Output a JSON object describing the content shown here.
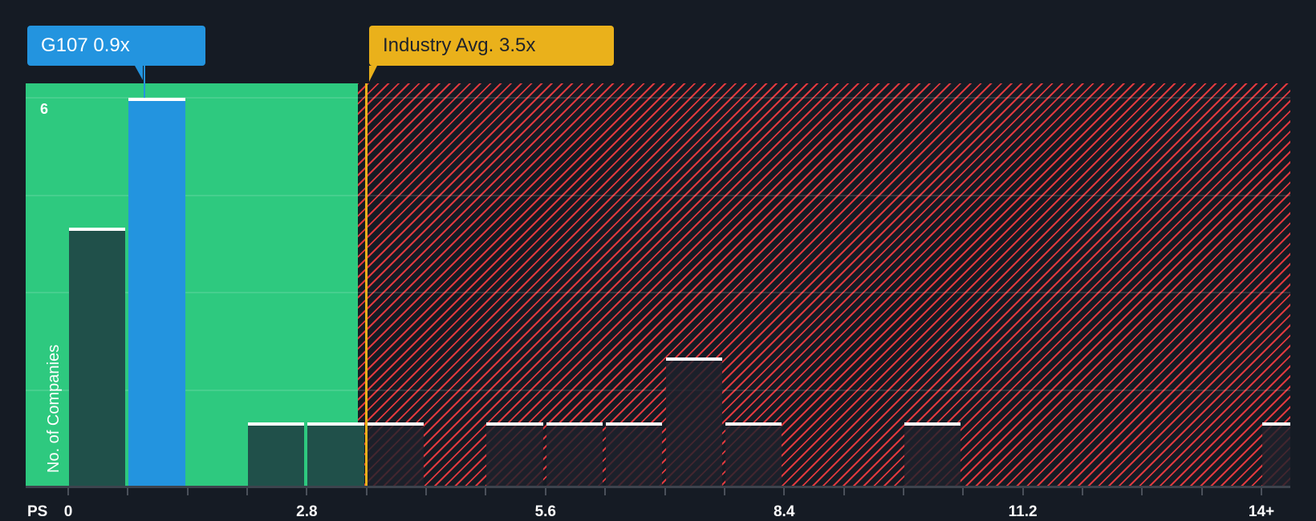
{
  "callouts": {
    "company": {
      "label": "G107 0.9x",
      "color": "#2394df"
    },
    "industry": {
      "label": "Industry Avg. 3.5x",
      "color": "#eab11b"
    }
  },
  "axes": {
    "x_name": "PS",
    "y_name": "No. of Companies",
    "y_tick_label": "6",
    "x_tick_labels": [
      "0",
      "2.8",
      "5.6",
      "8.4",
      "11.2",
      "14+"
    ]
  },
  "colors": {
    "background": "#151b24",
    "green_zone": "#2ec97f",
    "red_hatch": "#e0393e",
    "highlight_bar": "#2394df",
    "average_line": "#eab11b"
  },
  "chart_data": {
    "type": "bar",
    "title": "",
    "xlabel": "PS",
    "ylabel": "No. of Companies",
    "x_ticks": [
      0,
      2.8,
      5.6,
      8.4,
      11.2,
      "14+"
    ],
    "bin_width": 0.7,
    "categories": [
      "0-0.7",
      "0.7-1.4",
      "1.4-2.1",
      "2.1-2.8",
      "2.8-3.5",
      "3.5-4.2",
      "4.2-4.9",
      "4.9-5.6",
      "5.6-6.3",
      "6.3-7.0",
      "7.0-7.7",
      "7.7-8.4",
      "8.4-9.1",
      "9.1-9.8",
      "9.8-10.5",
      "10.5-11.2",
      "11.2-11.9",
      "11.9-12.6",
      "12.6-13.3",
      "13.3-14",
      "14+"
    ],
    "values": [
      4,
      6,
      0,
      1,
      1,
      1,
      0,
      1,
      1,
      1,
      2,
      1,
      0,
      0,
      1,
      0,
      0,
      0,
      0,
      0,
      1
    ],
    "highlight": {
      "label": "G107",
      "value": 0.9,
      "bin_index": 1
    },
    "industry_average": 3.5,
    "green_zone_max": 3.4,
    "ylim": [
      0,
      6
    ],
    "y_gridlines": [
      0,
      1.5,
      3,
      4.5,
      6
    ],
    "grid": true,
    "legend": "none"
  }
}
